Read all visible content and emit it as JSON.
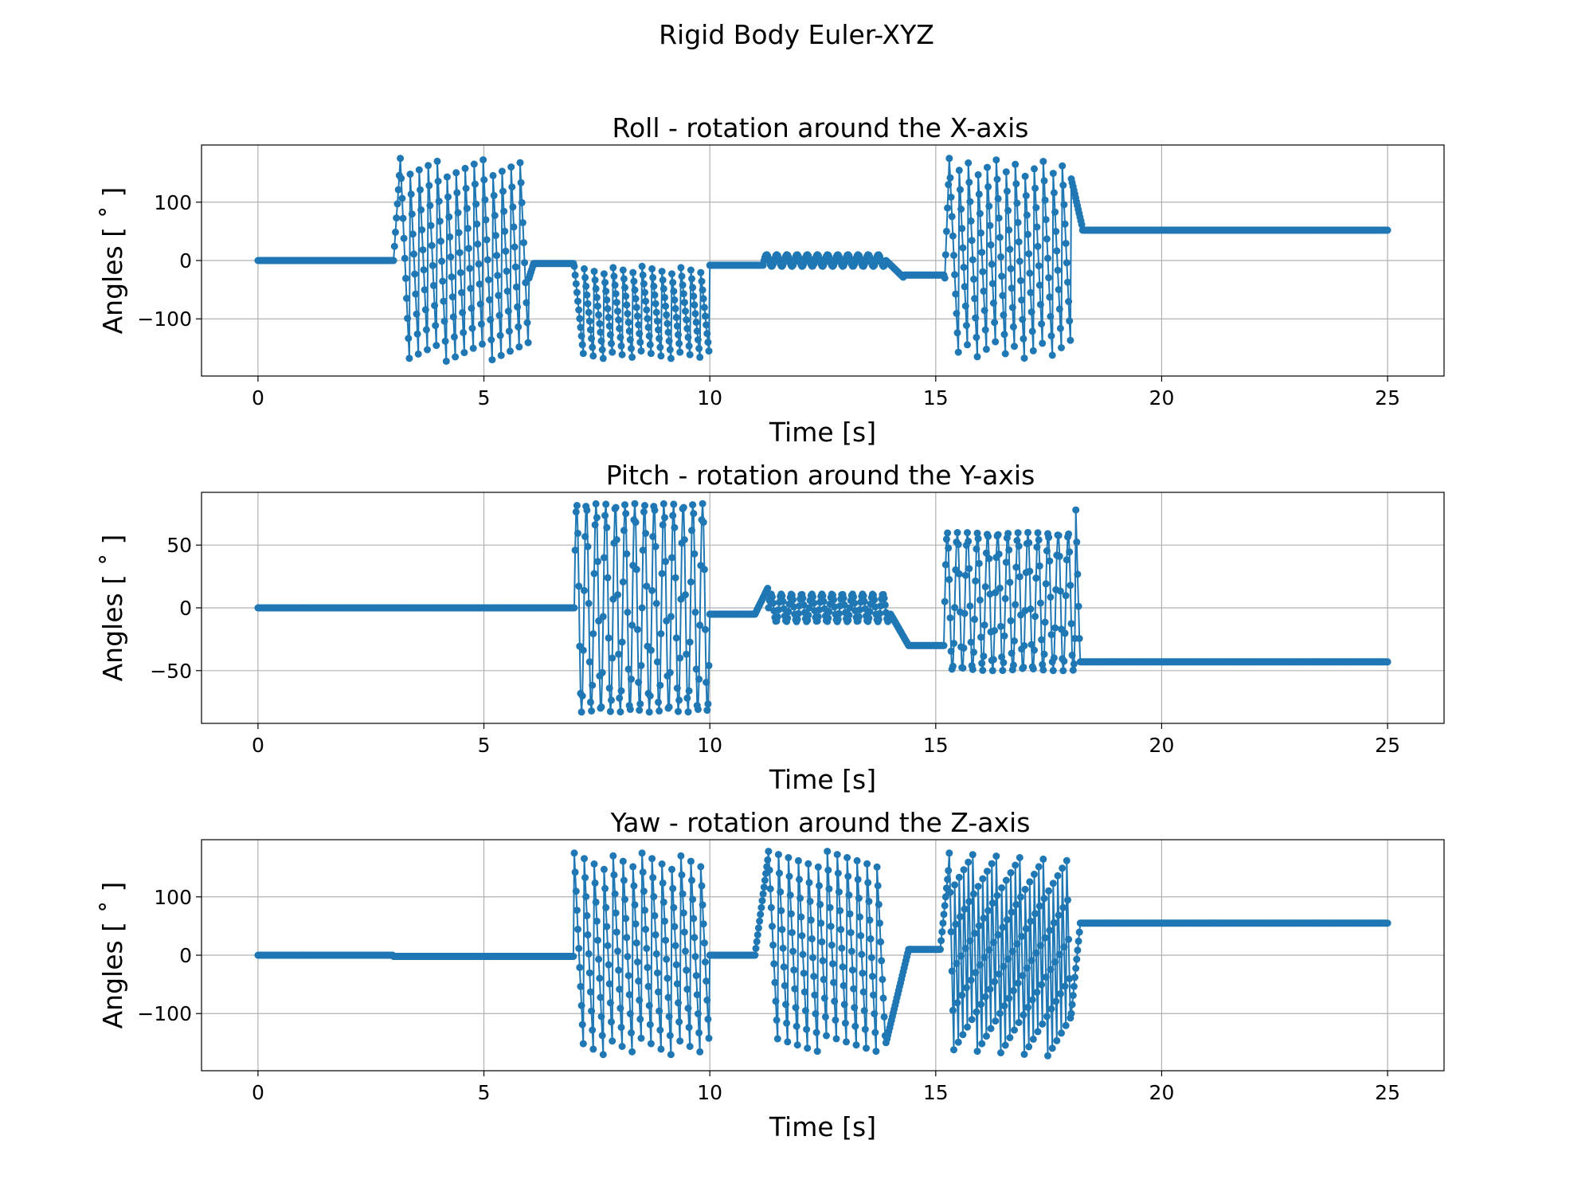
{
  "figure": {
    "suptitle": "Rigid Body Euler-XYZ"
  },
  "chart_data": [
    {
      "type": "line",
      "title": "Roll - rotation around the X-axis",
      "xlabel": "Time [s]",
      "ylabel": "Angles [$^\\circ$]",
      "xlim": [
        -1.25,
        26.25
      ],
      "ylim": [
        -198,
        198
      ],
      "xticks": [
        0,
        5,
        10,
        15,
        20,
        25
      ],
      "xtick_labels": [
        "0",
        "5",
        "10",
        "15",
        "20",
        "25"
      ],
      "yticks": [
        -100,
        0,
        100
      ],
      "ytick_labels": [
        "−100",
        "0",
        "100"
      ],
      "grid": true,
      "marker": "o",
      "color": "#1f77b4",
      "segments": [
        {
          "t0": 0,
          "t1": 3.0,
          "kind": "flat",
          "v": 0
        },
        {
          "t0": 3.0,
          "t1": 3.15,
          "kind": "ramp",
          "a": 0,
          "b": 170
        },
        {
          "t0": 3.15,
          "t1": 6.0,
          "kind": "wrap",
          "lo": -175,
          "hi": 175,
          "n": 14
        },
        {
          "t0": 6.0,
          "t1": 6.1,
          "kind": "ramp",
          "a": -30,
          "b": -5
        },
        {
          "t0": 6.1,
          "t1": 7.0,
          "kind": "flat",
          "v": -5
        },
        {
          "t0": 7.0,
          "t1": 10.0,
          "kind": "wrapneg",
          "lo": -170,
          "hi": -10,
          "n": 14
        },
        {
          "t0": 10.0,
          "t1": 11.2,
          "kind": "flat",
          "v": -8
        },
        {
          "t0": 11.2,
          "t1": 13.9,
          "kind": "sine",
          "c": 0,
          "a": 10,
          "n": 12
        },
        {
          "t0": 13.9,
          "t1": 14.3,
          "kind": "ramp",
          "a": 0,
          "b": -30
        },
        {
          "t0": 14.3,
          "t1": 15.2,
          "kind": "flat",
          "v": -25
        },
        {
          "t0": 15.2,
          "t1": 15.3,
          "kind": "ramp",
          "a": -30,
          "b": 170
        },
        {
          "t0": 15.3,
          "t1": 18.0,
          "kind": "wrap",
          "lo": -170,
          "hi": 175,
          "n": 13
        },
        {
          "t0": 18.0,
          "t1": 18.25,
          "kind": "ramp",
          "a": 140,
          "b": 55
        },
        {
          "t0": 18.25,
          "t1": 25.0,
          "kind": "flat",
          "v": 52
        }
      ]
    },
    {
      "type": "line",
      "title": "Pitch - rotation around the Y-axis",
      "xlabel": "Time [s]",
      "ylabel": "Angles [$^\\circ$]",
      "xlim": [
        -1.25,
        26.25
      ],
      "ylim": [
        -92,
        92
      ],
      "xticks": [
        0,
        5,
        10,
        15,
        20,
        25
      ],
      "xtick_labels": [
        "0",
        "5",
        "10",
        "15",
        "20",
        "25"
      ],
      "yticks": [
        -50,
        0,
        50
      ],
      "ytick_labels": [
        "−50",
        "0",
        "50"
      ],
      "grid": true,
      "marker": "o",
      "color": "#1f77b4",
      "segments": [
        {
          "t0": 0,
          "t1": 7.0,
          "kind": "flat",
          "v": 0
        },
        {
          "t0": 7.0,
          "t1": 10.0,
          "kind": "sine",
          "c": 0,
          "a": 83,
          "n": 14
        },
        {
          "t0": 10.0,
          "t1": 11.0,
          "kind": "flat",
          "v": -5
        },
        {
          "t0": 11.0,
          "t1": 11.3,
          "kind": "ramp",
          "a": -5,
          "b": 17
        },
        {
          "t0": 11.3,
          "t1": 14.0,
          "kind": "sine",
          "c": 0,
          "a": 11,
          "n": 12
        },
        {
          "t0": 14.0,
          "t1": 14.4,
          "kind": "ramp",
          "a": -5,
          "b": -30
        },
        {
          "t0": 14.4,
          "t1": 15.2,
          "kind": "flat",
          "v": -30
        },
        {
          "t0": 15.2,
          "t1": 18.1,
          "kind": "sine",
          "c": 5,
          "a": 55,
          "n": 13
        },
        {
          "t0": 18.1,
          "t1": 18.2,
          "kind": "ramp",
          "a": 78,
          "b": -50
        },
        {
          "t0": 18.2,
          "t1": 25.0,
          "kind": "flat",
          "v": -43
        }
      ]
    },
    {
      "type": "line",
      "title": "Yaw - rotation around the Z-axis",
      "xlabel": "Time [s]",
      "ylabel": "Angles [$^\\circ$]",
      "xlim": [
        -1.25,
        26.25
      ],
      "ylim": [
        -198,
        198
      ],
      "xticks": [
        0,
        5,
        10,
        15,
        20,
        25
      ],
      "xtick_labels": [
        "0",
        "5",
        "10",
        "15",
        "20",
        "25"
      ],
      "yticks": [
        -100,
        0,
        100
      ],
      "ytick_labels": [
        "−100",
        "0",
        "100"
      ],
      "grid": true,
      "marker": "o",
      "color": "#1f77b4",
      "segments": [
        {
          "t0": 0,
          "t1": 3.0,
          "kind": "flat",
          "v": 0
        },
        {
          "t0": 3.0,
          "t1": 7.0,
          "kind": "flat",
          "v": -2
        },
        {
          "t0": 7.0,
          "t1": 10.0,
          "kind": "wrap",
          "lo": -175,
          "hi": 175,
          "n": 14
        },
        {
          "t0": 10.0,
          "t1": 11.0,
          "kind": "flat",
          "v": 0
        },
        {
          "t0": 11.0,
          "t1": 11.3,
          "kind": "ramp",
          "a": 0,
          "b": 175
        },
        {
          "t0": 11.3,
          "t1": 13.9,
          "kind": "wrap",
          "lo": -170,
          "hi": 178,
          "n": 12
        },
        {
          "t0": 13.9,
          "t1": 14.4,
          "kind": "ramp",
          "a": -150,
          "b": 10
        },
        {
          "t0": 14.4,
          "t1": 15.1,
          "kind": "flat",
          "v": 10
        },
        {
          "t0": 15.1,
          "t1": 15.3,
          "kind": "ramp",
          "a": 10,
          "b": 160
        },
        {
          "t0": 15.3,
          "t1": 18.0,
          "kind": "wrap",
          "lo": -175,
          "hi": 175,
          "n": 26
        },
        {
          "t0": 18.0,
          "t1": 18.2,
          "kind": "ramp",
          "a": -100,
          "b": 55
        },
        {
          "t0": 18.2,
          "t1": 25.0,
          "kind": "flat",
          "v": 55
        }
      ]
    }
  ]
}
